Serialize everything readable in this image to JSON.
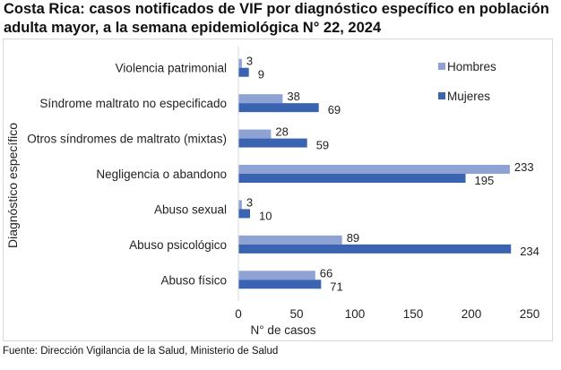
{
  "header": {
    "title_line1": "Costa Rica: casos notificados de VIF por diagnóstico específico en población",
    "title_line2": "adulta mayor, a la semana epidemiológica N° 22, 2024"
  },
  "footer": {
    "source": "Fuente: Dirección Vigilancia de la Salud, Ministerio de Salud"
  },
  "chart_data": {
    "type": "bar",
    "orientation": "horizontal",
    "title": "Costa Rica: casos notificados de VIF por diagnóstico específico en población adulta mayor, a la semana epidemiológica N° 22, 2024",
    "xlabel": "N° de casos",
    "ylabel": "Diagnóstico específico",
    "xlim": [
      0,
      250
    ],
    "xticks": [
      "0",
      "50",
      "100",
      "150",
      "200",
      "250"
    ],
    "grid": false,
    "legend_position": "top-right",
    "categories": [
      "Violencia patrimonial",
      "Síndrome maltrato no especificado",
      "Otros síndromes de maltrato (mixtas)",
      "Negligencia o abandono",
      "Abuso sexual",
      "Abuso psicológico",
      "Abuso físico"
    ],
    "series": [
      {
        "name": "Hombres",
        "color": "#8FA2D4",
        "values": [
          3,
          38,
          28,
          233,
          3,
          89,
          66
        ]
      },
      {
        "name": "Mujeres",
        "color": "#3A63B2",
        "values": [
          9,
          69,
          59,
          195,
          10,
          234,
          71
        ]
      }
    ]
  }
}
